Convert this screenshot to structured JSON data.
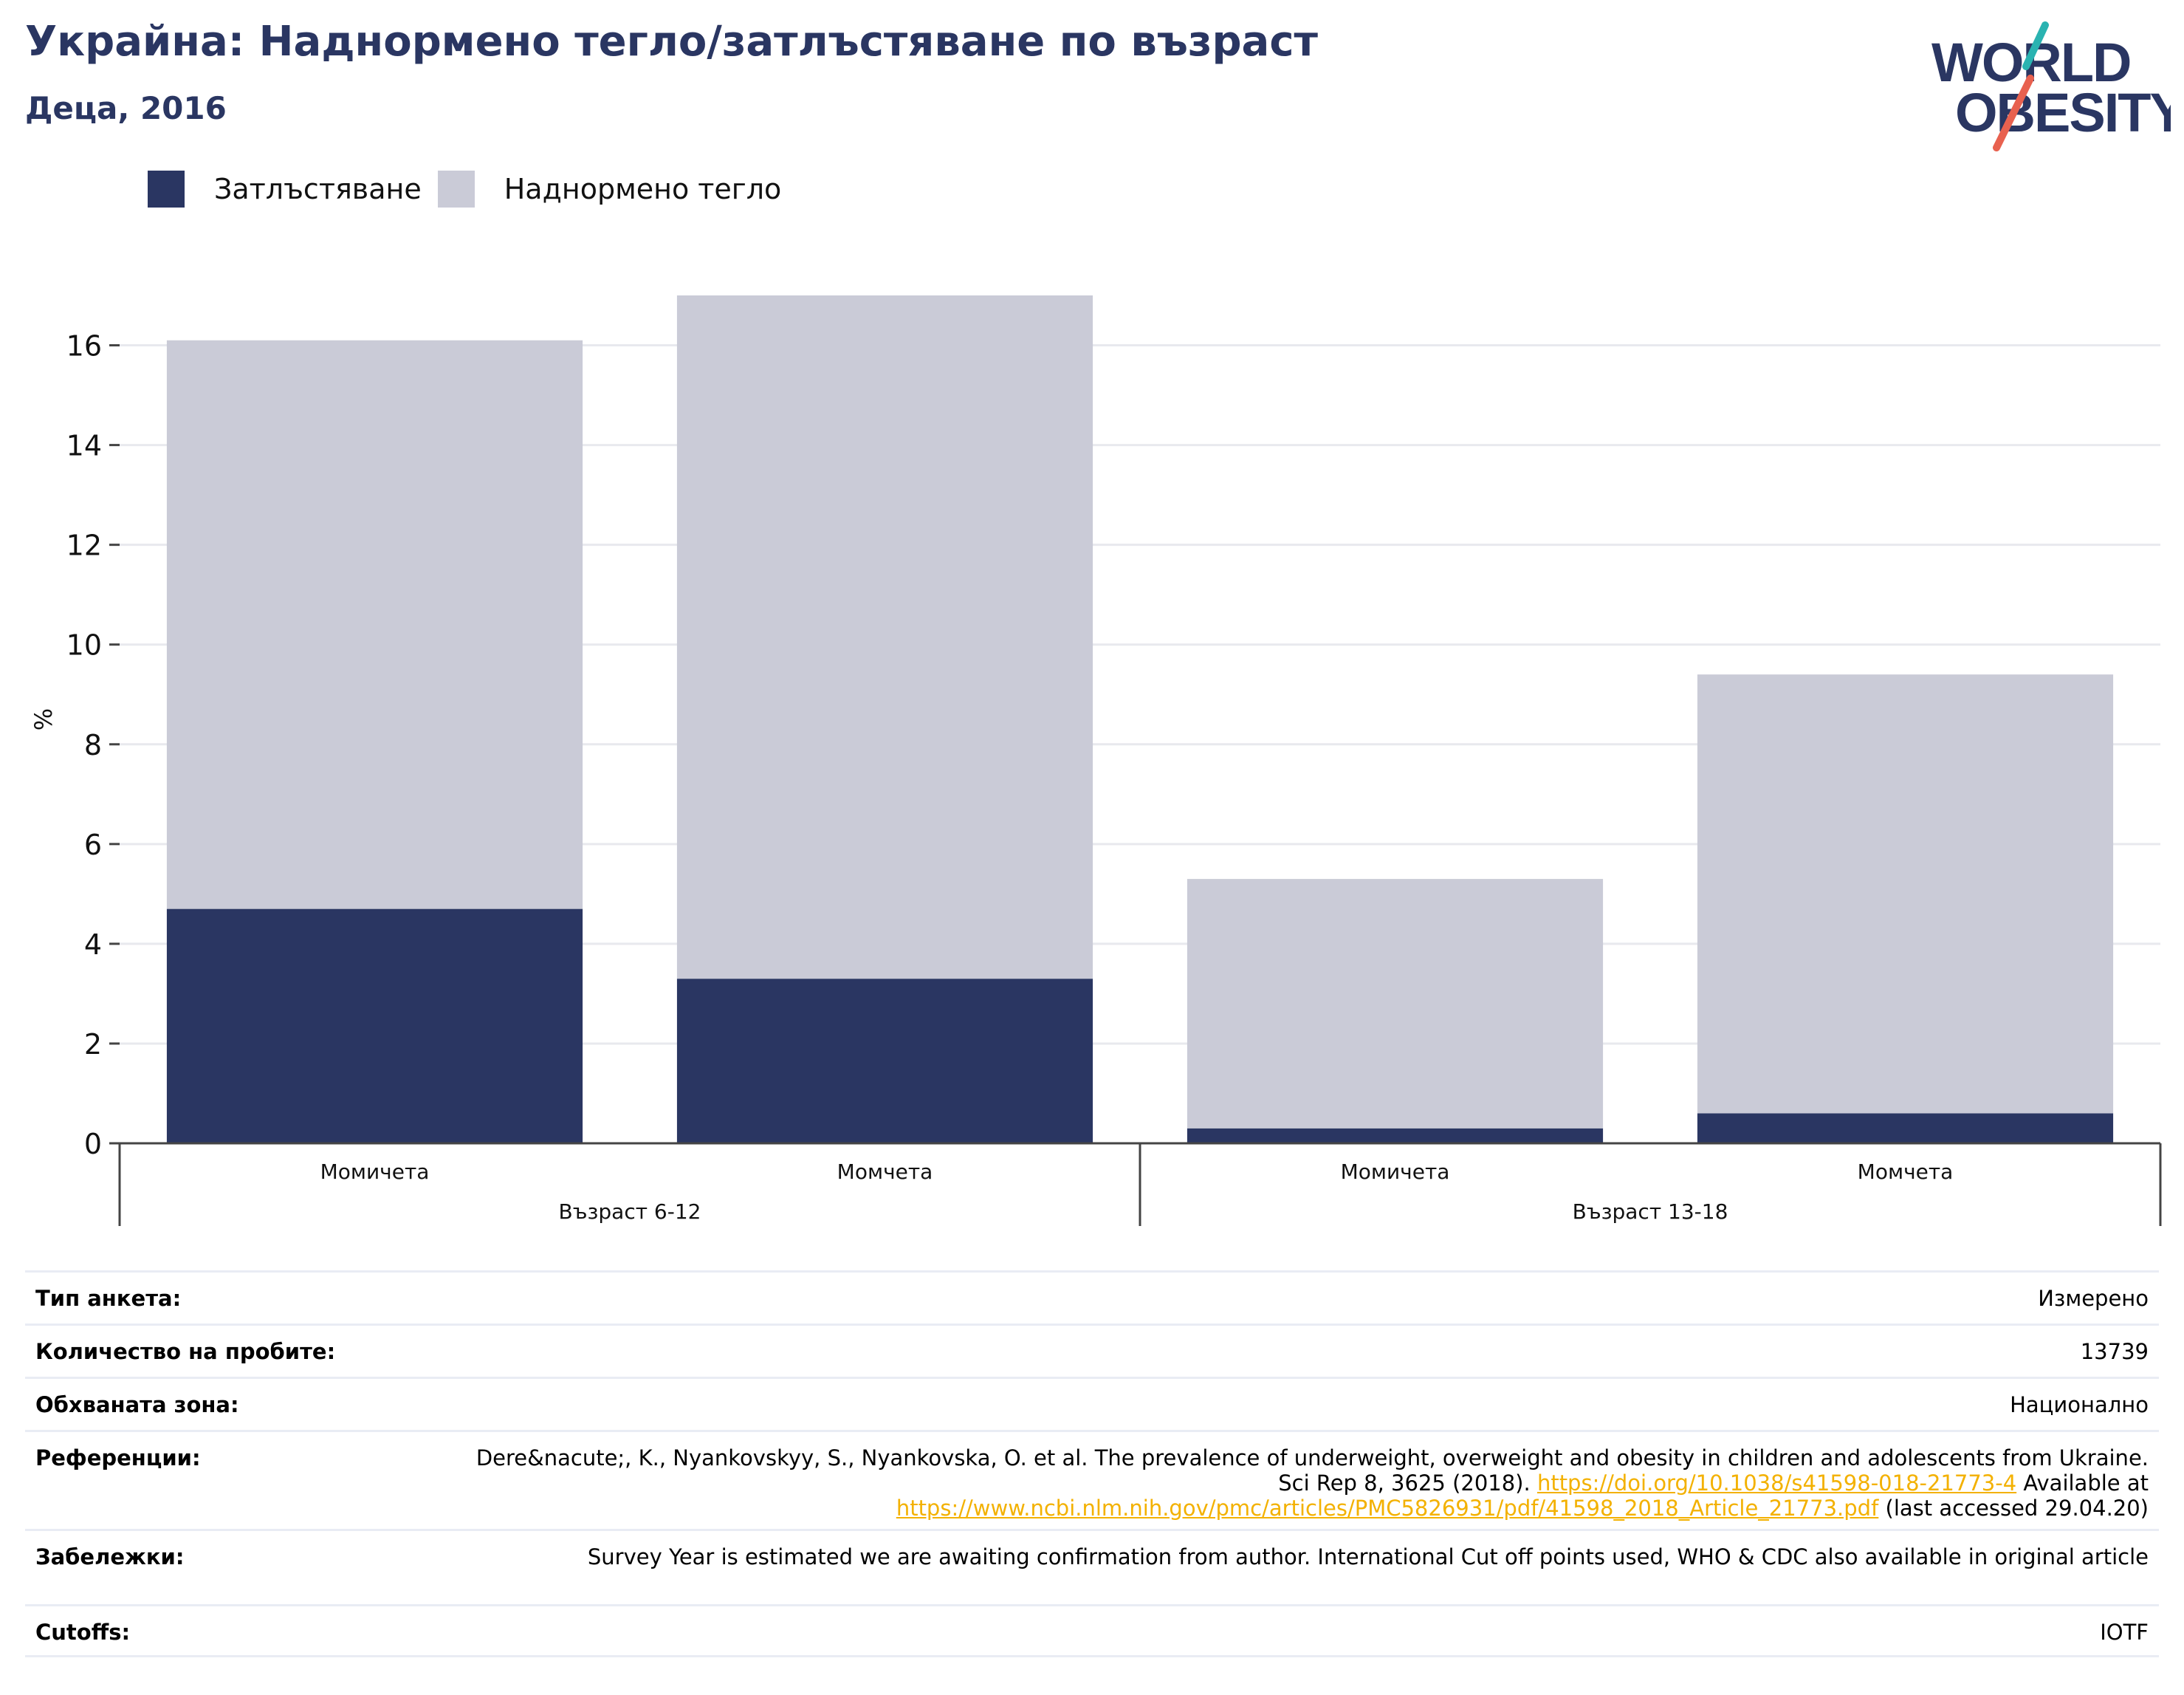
{
  "header": {
    "title": "Украйна: Наднормено тегло/затлъстяване по възраст",
    "subtitle": "Деца, 2016"
  },
  "logo": {
    "line1": "WORLD",
    "line2": "OBESITY",
    "icon": "world-obesity-logo"
  },
  "legend": [
    {
      "label": "Затлъстяване",
      "color": "#2a3662"
    },
    {
      "label": "Наднормено тегло",
      "color": "#cacbd7"
    }
  ],
  "colors": {
    "obesity": "#2a3662",
    "overweight": "#cacbd7",
    "grid": "#e8e9ee",
    "axis": "#444444",
    "link": "#f3b100"
  },
  "chart_data": {
    "type": "bar",
    "stacked": true,
    "ylabel": "%",
    "ylim": [
      0,
      17
    ],
    "yticks": [
      0,
      2,
      4,
      6,
      8,
      10,
      12,
      14,
      16
    ],
    "grid": true,
    "legend_position": "top-left",
    "categories": [
      "Момичета",
      "Момчета",
      "Момичета",
      "Момчета"
    ],
    "groups": [
      {
        "label": "Възраст 6-12",
        "categories": [
          "Момичета",
          "Момчета"
        ]
      },
      {
        "label": "Възраст 13-18",
        "categories": [
          "Момичета",
          "Момчета"
        ]
      }
    ],
    "series": [
      {
        "name": "Затлъстяване",
        "values": [
          4.7,
          3.3,
          0.3,
          0.6
        ]
      },
      {
        "name": "Наднормено тегло",
        "values": [
          11.4,
          13.7,
          5.0,
          8.8
        ]
      }
    ]
  },
  "meta": {
    "survey_type": {
      "label": "Тип анкета:",
      "value": "Измерено"
    },
    "sample_size": {
      "label": "Количество на пробите:",
      "value": "13739"
    },
    "coverage": {
      "label": "Обхваната зона:",
      "value": "Национално"
    },
    "references": {
      "label": "Референции:",
      "text1": "Dere&nacute;, K., Nyankovskyy, S., Nyankovska, O. et al. The prevalence of underweight, overweight and obesity in children and adolescents from Ukraine. Sci Rep 8, 3625 (2018). ",
      "link1": "https://doi.org/10.1038/s41598-018-21773-4",
      "text2": " Available at ",
      "link2": "https://www.ncbi.nlm.nih.gov/pmc/articles/PMC5826931/pdf/41598_2018_Article_21773.pdf",
      "text3": " (last accessed 29.04.20)"
    },
    "notes": {
      "label": "Забележки:",
      "value": "Survey Year is estimated we are awaiting confirmation from author. International Cut off points used, WHO & CDC also available in original article"
    },
    "cutoffs": {
      "label": "Cutoffs:",
      "value": "IOTF"
    }
  }
}
